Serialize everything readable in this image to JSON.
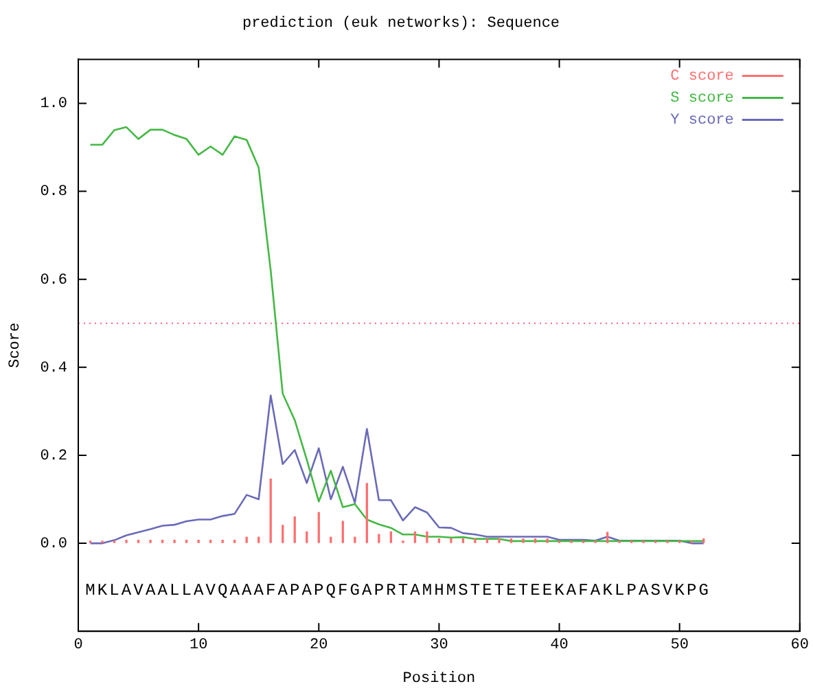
{
  "chart_data": {
    "type": "line",
    "title": "prediction (euk networks): Sequence",
    "xlabel": "Position",
    "ylabel": "Score",
    "x": [
      1,
      2,
      3,
      4,
      5,
      6,
      7,
      8,
      9,
      10,
      11,
      12,
      13,
      14,
      15,
      16,
      17,
      18,
      19,
      20,
      21,
      22,
      23,
      24,
      25,
      26,
      27,
      28,
      29,
      30,
      31,
      32,
      33,
      34,
      35,
      36,
      37,
      38,
      39,
      40,
      41,
      42,
      43,
      44,
      45,
      46,
      47,
      48,
      49,
      50,
      51,
      52
    ],
    "series": [
      {
        "name": "C score",
        "type": "bar",
        "color": "#ff7070",
        "values": [
          0.005,
          0.005,
          0.005,
          0.007,
          0.007,
          0.007,
          0.007,
          0.007,
          0.007,
          0.007,
          0.007,
          0.007,
          0.007,
          0.014,
          0.014,
          0.146,
          0.041,
          0.06,
          0.026,
          0.07,
          0.014,
          0.05,
          0.014,
          0.136,
          0.02,
          0.026,
          0.005,
          0.026,
          0.026,
          0.01,
          0.01,
          0.01,
          0.01,
          0.01,
          0.01,
          0.01,
          0.01,
          0.01,
          0.01,
          0.005,
          0.005,
          0.005,
          0.005,
          0.025,
          0.005,
          0.005,
          0.005,
          0.005,
          0.005,
          0.005,
          0.005,
          0.01
        ]
      },
      {
        "name": "S score",
        "color": "#44b844",
        "values": [
          0.906,
          0.906,
          0.939,
          0.946,
          0.919,
          0.94,
          0.94,
          0.928,
          0.919,
          0.883,
          0.902,
          0.883,
          0.925,
          0.917,
          0.854,
          0.62,
          0.34,
          0.28,
          0.19,
          0.095,
          0.165,
          0.082,
          0.089,
          0.054,
          0.043,
          0.035,
          0.02,
          0.02,
          0.015,
          0.015,
          0.013,
          0.014,
          0.01,
          0.01,
          0.01,
          0.005,
          0.005,
          0.005,
          0.005,
          0.005,
          0.005,
          0.005,
          0.005,
          0.005,
          0.005,
          0.005,
          0.005,
          0.005,
          0.005,
          0.005,
          0.005,
          0.005
        ]
      },
      {
        "name": "Y score",
        "color": "#6a6ab8",
        "values": [
          0,
          0,
          0.007,
          0.018,
          0.025,
          0.032,
          0.04,
          0.042,
          0.05,
          0.054,
          0.054,
          0.062,
          0.067,
          0.11,
          0.1,
          0.336,
          0.18,
          0.212,
          0.137,
          0.216,
          0.1,
          0.174,
          0.092,
          0.26,
          0.098,
          0.098,
          0.052,
          0.082,
          0.07,
          0.036,
          0.035,
          0.023,
          0.02,
          0.015,
          0.015,
          0.015,
          0.015,
          0.015,
          0.015,
          0.008,
          0.008,
          0.008,
          0.006,
          0.015,
          0.006,
          0.006,
          0.006,
          0.006,
          0.006,
          0.006,
          0,
          0
        ]
      }
    ],
    "ref_lines": [
      {
        "axis": "y",
        "value": 0.5,
        "color": "#ff6080",
        "line_style": "dotted"
      }
    ],
    "xlim": [
      0,
      60
    ],
    "xticks": [
      0,
      10,
      20,
      30,
      40,
      50,
      60
    ],
    "ylim": [
      -0.2,
      1.1
    ],
    "yticks": [
      {
        "value": 0,
        "label": "0.0"
      },
      0.2,
      0.4,
      0.6,
      0.8,
      {
        "value": 1,
        "label": "1.0"
      }
    ],
    "grid": false,
    "legend": "top right",
    "marker": "none",
    "annotations": [
      "MKLAVAALLAVQAAAFAPAPQFGAPRTAMHMSTETETEEKAFAKLPASVKPG"
    ]
  }
}
